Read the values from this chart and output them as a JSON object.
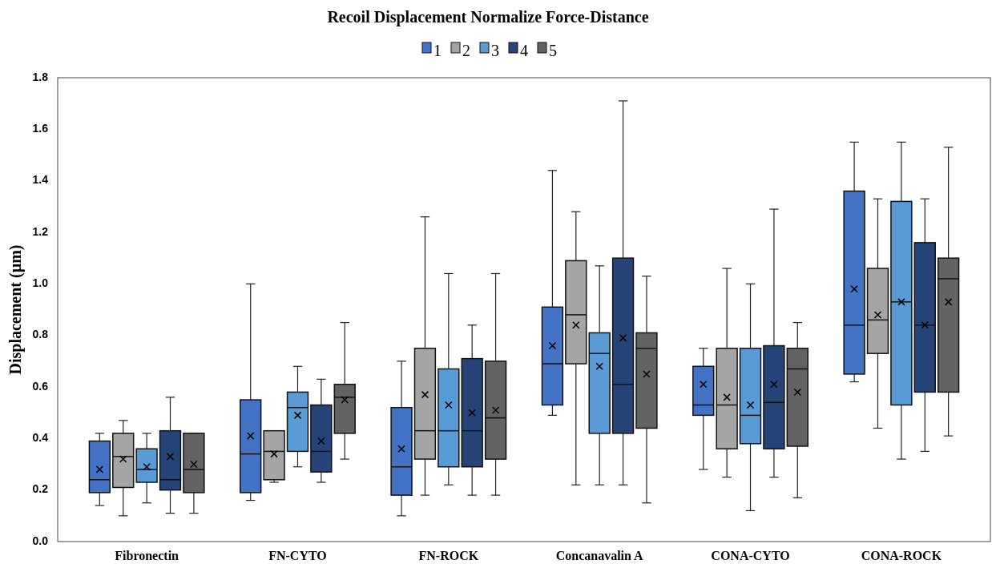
{
  "chart_data": {
    "type": "box",
    "title": "Recoil Displacement Normalize Force-Distance",
    "ylabel": "Displacement (µm)",
    "categories": [
      "Fibronectin",
      "FN-CYTO",
      "FN-ROCK",
      "Concanavalin A",
      "CONA-CYTO",
      "CONA-ROCK"
    ],
    "ylim": [
      0,
      1.8
    ],
    "yticks": [
      {
        "value": 0,
        "label": "0.0"
      },
      {
        "value": 0.2,
        "label": "0.2"
      },
      {
        "value": 0.4,
        "label": "0.4"
      },
      {
        "value": 0.6,
        "label": "0.6"
      },
      {
        "value": 0.8,
        "label": "0.8"
      },
      {
        "value": 1,
        "label": "1.0"
      },
      {
        "value": 1.2,
        "label": "1.2"
      },
      {
        "value": 1.4,
        "label": "1.4"
      },
      {
        "value": 1.6,
        "label": "1.6"
      },
      {
        "value": 1.8,
        "label": "1.8"
      }
    ],
    "grid": false,
    "legend": "top",
    "series": [
      {
        "name": "1",
        "color": "#4472c4",
        "boxes": [
          {
            "low": 0.14,
            "q1": 0.19,
            "median": 0.24,
            "q3": 0.39,
            "high": 0.42,
            "mean": 0.28
          },
          {
            "low": 0.16,
            "q1": 0.19,
            "median": 0.34,
            "q3": 0.55,
            "high": 1.0,
            "mean": 0.41
          },
          {
            "low": 0.1,
            "q1": 0.18,
            "median": 0.29,
            "q3": 0.52,
            "high": 0.7,
            "mean": 0.36
          },
          {
            "low": 0.49,
            "q1": 0.53,
            "median": 0.69,
            "q3": 0.91,
            "high": 1.44,
            "mean": 0.76
          },
          {
            "low": 0.28,
            "q1": 0.49,
            "median": 0.53,
            "q3": 0.68,
            "high": 0.75,
            "mean": 0.61
          },
          {
            "low": 0.62,
            "q1": 0.65,
            "median": 0.84,
            "q3": 1.36,
            "high": 1.55,
            "mean": 0.98
          }
        ]
      },
      {
        "name": "2",
        "color": "#a5a5a5",
        "boxes": [
          {
            "low": 0.1,
            "q1": 0.21,
            "median": 0.33,
            "q3": 0.42,
            "high": 0.47,
            "mean": 0.32
          },
          {
            "low": 0.23,
            "q1": 0.24,
            "median": 0.35,
            "q3": 0.43,
            "high": 0.43,
            "mean": 0.34
          },
          {
            "low": 0.18,
            "q1": 0.32,
            "median": 0.43,
            "q3": 0.75,
            "high": 1.26,
            "mean": 0.57
          },
          {
            "low": 0.22,
            "q1": 0.69,
            "median": 0.88,
            "q3": 1.09,
            "high": 1.28,
            "mean": 0.84
          },
          {
            "low": 0.25,
            "q1": 0.36,
            "median": 0.53,
            "q3": 0.75,
            "high": 1.06,
            "mean": 0.56
          },
          {
            "low": 0.44,
            "q1": 0.73,
            "median": 0.86,
            "q3": 1.06,
            "high": 1.33,
            "mean": 0.88
          }
        ]
      },
      {
        "name": "3",
        "color": "#5b9bd5",
        "boxes": [
          {
            "low": 0.15,
            "q1": 0.23,
            "median": 0.28,
            "q3": 0.36,
            "high": 0.42,
            "mean": 0.29
          },
          {
            "low": 0.29,
            "q1": 0.35,
            "median": 0.52,
            "q3": 0.58,
            "high": 0.68,
            "mean": 0.49
          },
          {
            "low": 0.22,
            "q1": 0.29,
            "median": 0.43,
            "q3": 0.67,
            "high": 1.04,
            "mean": 0.53
          },
          {
            "low": 0.22,
            "q1": 0.42,
            "median": 0.73,
            "q3": 0.81,
            "high": 1.07,
            "mean": 0.68
          },
          {
            "low": 0.12,
            "q1": 0.38,
            "median": 0.49,
            "q3": 0.75,
            "high": 1.0,
            "mean": 0.53
          },
          {
            "low": 0.32,
            "q1": 0.53,
            "median": 0.93,
            "q3": 1.32,
            "high": 1.55,
            "mean": 0.93
          }
        ]
      },
      {
        "name": "4",
        "color": "#264478",
        "boxes": [
          {
            "low": 0.11,
            "q1": 0.2,
            "median": 0.24,
            "q3": 0.43,
            "high": 0.56,
            "mean": 0.33
          },
          {
            "low": 0.23,
            "q1": 0.27,
            "median": 0.35,
            "q3": 0.53,
            "high": 0.63,
            "mean": 0.39
          },
          {
            "low": 0.18,
            "q1": 0.29,
            "median": 0.43,
            "q3": 0.71,
            "high": 0.84,
            "mean": 0.5
          },
          {
            "low": 0.22,
            "q1": 0.42,
            "median": 0.61,
            "q3": 1.1,
            "high": 1.71,
            "mean": 0.79
          },
          {
            "low": 0.25,
            "q1": 0.36,
            "median": 0.54,
            "q3": 0.76,
            "high": 1.29,
            "mean": 0.61
          },
          {
            "low": 0.35,
            "q1": 0.58,
            "median": 0.84,
            "q3": 1.16,
            "high": 1.33,
            "mean": 0.84
          }
        ]
      },
      {
        "name": "5",
        "color": "#636363",
        "boxes": [
          {
            "low": 0.11,
            "q1": 0.19,
            "median": 0.28,
            "q3": 0.42,
            "high": 0.42,
            "mean": 0.3
          },
          {
            "low": 0.32,
            "q1": 0.42,
            "median": 0.56,
            "q3": 0.61,
            "high": 0.85,
            "mean": 0.55
          },
          {
            "low": 0.18,
            "q1": 0.32,
            "median": 0.48,
            "q3": 0.7,
            "high": 1.04,
            "mean": 0.51
          },
          {
            "low": 0.15,
            "q1": 0.44,
            "median": 0.75,
            "q3": 0.81,
            "high": 1.03,
            "mean": 0.65
          },
          {
            "low": 0.17,
            "q1": 0.37,
            "median": 0.67,
            "q3": 0.75,
            "high": 0.85,
            "mean": 0.58
          },
          {
            "low": 0.41,
            "q1": 0.58,
            "median": 1.02,
            "q3": 1.1,
            "high": 1.53,
            "mean": 0.93
          }
        ]
      }
    ]
  }
}
